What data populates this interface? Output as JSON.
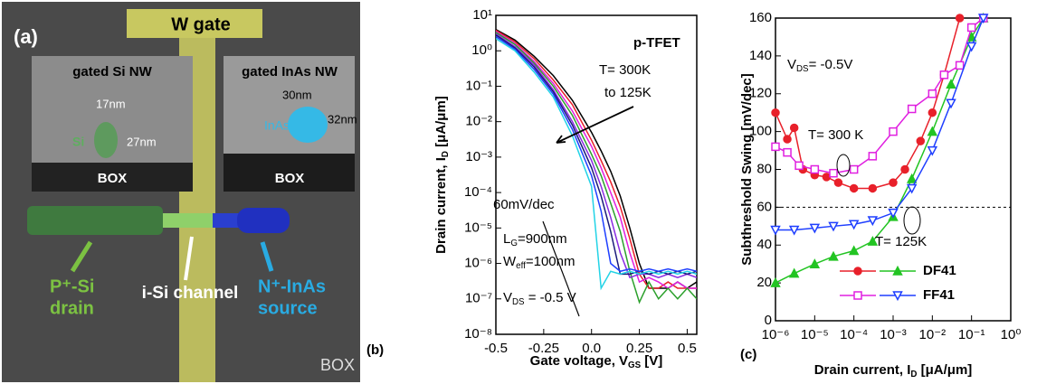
{
  "image_panel": {
    "panel_label": "(a)",
    "gate_label": "W gate",
    "left_inset": {
      "title": "gated Si NW",
      "width": "17nm",
      "height": "27nm",
      "material": "Si",
      "box": "BOX"
    },
    "right_inset": {
      "title": "gated InAs NW",
      "width": "30nm",
      "height": "32nm",
      "material": "InAs",
      "box": "BOX"
    },
    "drain": {
      "line1": "P⁺-Si",
      "line2": "drain"
    },
    "channel": "i-Si channel",
    "source": {
      "line1": "N⁺-InAs",
      "line2": "source"
    },
    "substrate": "BOX"
  },
  "chart_data": [
    {
      "type": "line",
      "panel_label": "(b)",
      "ylog": true,
      "x_label": {
        "text": "Gate voltage, V",
        "sub": "GS",
        "tail": " [V]"
      },
      "y_label": {
        "text": "Drain current, I",
        "sub": "D",
        "tail": " [μA/μm]"
      },
      "xlim": [
        -0.5,
        0.55
      ],
      "xticks": [
        -0.5,
        -0.25,
        {
          "value": 0,
          "label": "0.0"
        },
        0.25,
        0.5
      ],
      "ylim": [
        1e-08,
        10
      ],
      "yticks": [
        {
          "value": 1e-08,
          "label": "10⁻⁸"
        },
        {
          "value": 1e-07,
          "label": "10⁻⁷"
        },
        {
          "value": 1e-06,
          "label": "10⁻⁶"
        },
        {
          "value": 1e-05,
          "label": "10⁻⁵"
        },
        {
          "value": 0.0001,
          "label": "10⁻⁴"
        },
        {
          "value": 0.001,
          "label": "10⁻³"
        },
        {
          "value": 0.01,
          "label": "10⁻²"
        },
        {
          "value": 0.1,
          "label": "10⁻¹"
        },
        {
          "value": 1,
          "label": "10⁰"
        },
        {
          "value": 10,
          "label": "10¹"
        }
      ],
      "annotations": [
        {
          "text": "p-TFET"
        },
        {
          "text": "T= 300K"
        },
        {
          "text": "to 125K"
        },
        {
          "text": "60mV/dec"
        },
        {
          "text": "L",
          "sub": "G",
          "tail": "=900nm"
        },
        {
          "text": "W",
          "sub": "eff",
          "tail": "=100nm"
        },
        {
          "text": "V",
          "sub": "DS",
          "tail": " = -0.5 V"
        }
      ],
      "x": [
        -0.5,
        -0.4,
        -0.3,
        -0.2,
        -0.1,
        0,
        0.05,
        0.1,
        0.15,
        0.2,
        0.25,
        0.3,
        0.35,
        0.4,
        0.45,
        0.5,
        0.55
      ],
      "series": [
        {
          "color": "#000000",
          "values": [
            4,
            2,
            0.7,
            0.2,
            0.04,
            0.005,
            0.0015,
            0.0004,
            8e-05,
            1e-05,
            1e-06,
            2e-07,
            2e-07,
            2e-07,
            3e-07,
            2e-07,
            3e-07
          ]
        },
        {
          "color": "#e8202a",
          "values": [
            3.8,
            1.8,
            0.6,
            0.15,
            0.03,
            0.003,
            0.0008,
            0.0002,
            4e-05,
            5e-06,
            5e-07,
            2e-07,
            2e-07,
            3e-07,
            2e-07,
            2e-07,
            2e-07
          ]
        },
        {
          "color": "#e020e0",
          "values": [
            3.5,
            1.6,
            0.5,
            0.12,
            0.02,
            0.002,
            0.0005,
            0.0001,
            2e-05,
            2e-06,
            3e-07,
            4e-07,
            3e-07,
            2e-07,
            3e-07,
            2e-07,
            2e-07
          ]
        },
        {
          "color": "#2ca02c",
          "values": [
            3.3,
            1.5,
            0.45,
            0.1,
            0.015,
            0.0012,
            0.0003,
            5e-05,
            8e-06,
            6e-07,
            8e-08,
            3e-07,
            1e-07,
            2e-07,
            1e-07,
            2e-07,
            1e-07
          ]
        },
        {
          "color": "#8a2be2",
          "values": [
            3,
            1.3,
            0.4,
            0.08,
            0.01,
            0.0008,
            0.00015,
            2e-05,
            2e-06,
            4e-07,
            5e-07,
            5e-07,
            4e-07,
            5e-07,
            4e-07,
            5e-07,
            4e-07
          ]
        },
        {
          "color": "#1a1a7a",
          "values": [
            2.8,
            1.2,
            0.35,
            0.07,
            0.008,
            0.0005,
            8e-05,
            8e-06,
            5e-07,
            5e-07,
            6e-07,
            5e-07,
            6e-07,
            5e-07,
            6e-07,
            5e-07,
            6e-07
          ]
        },
        {
          "color": "#1f3fff",
          "values": [
            2.5,
            1.1,
            0.3,
            0.06,
            0.006,
            0.0003,
            3e-05,
            1e-06,
            6e-07,
            7e-07,
            6e-07,
            7e-07,
            6e-07,
            7e-07,
            6e-07,
            7e-07,
            6e-07
          ]
        },
        {
          "color": "#22d3e6",
          "values": [
            2.2,
            1,
            0.25,
            0.05,
            0.004,
            0.00015,
            2e-07,
            6e-07,
            5e-07,
            6e-07,
            5e-07,
            6e-07,
            5e-07,
            6e-07,
            5e-07,
            6e-07,
            5e-07
          ]
        }
      ]
    },
    {
      "type": "line",
      "panel_label": "(c)",
      "xlog": true,
      "x_label": {
        "text": "Drain current, I",
        "sub": "D",
        "tail": " [μA/μm]"
      },
      "y_label": {
        "text": "Subthreshold Swing [mV/dec]"
      },
      "xlim": [
        1e-06,
        1
      ],
      "xticks": [
        {
          "value": 1e-06,
          "label": "10⁻⁶"
        },
        {
          "value": 1e-05,
          "label": "10⁻⁵"
        },
        {
          "value": 0.0001,
          "label": "10⁻⁴"
        },
        {
          "value": 0.001,
          "label": "10⁻³"
        },
        {
          "value": 0.01,
          "label": "10⁻²"
        },
        {
          "value": 0.1,
          "label": "10⁻¹"
        },
        {
          "value": 1,
          "label": "10⁰"
        }
      ],
      "ylim": [
        0,
        160
      ],
      "yticks": [
        0,
        20,
        40,
        60,
        80,
        100,
        120,
        140,
        160
      ],
      "reference_line": 60,
      "annotations": [
        {
          "text": "V",
          "sub": "DS",
          "tail": "= -0.5V"
        },
        {
          "text": "T= 300 K"
        },
        {
          "text": "T= 125K"
        }
      ],
      "series": [
        {
          "name": "DF41",
          "color": "#e8202a",
          "marker": "circle",
          "marker_fill": true,
          "x": [
            1e-06,
            2e-06,
            3e-06,
            5e-06,
            1e-05,
            2e-05,
            4e-05,
            0.0001,
            0.0003,
            0.001,
            0.002,
            0.005,
            0.01,
            0.02,
            0.05
          ],
          "values": [
            110,
            96,
            102,
            80,
            77,
            76,
            73,
            70,
            70,
            73,
            80,
            95,
            110,
            130,
            160
          ]
        },
        {
          "name": "DF41",
          "color": "#22c422",
          "marker": "triangle",
          "marker_fill": true,
          "x": [
            1e-06,
            3e-06,
            1e-05,
            3e-05,
            0.0001,
            0.0003,
            0.001,
            0.003,
            0.01,
            0.03,
            0.1,
            0.2
          ],
          "values": [
            20,
            25,
            30,
            34,
            37,
            42,
            55,
            75,
            100,
            125,
            150,
            160
          ]
        },
        {
          "name": "FF41",
          "color": "#e020e0",
          "marker": "square",
          "marker_fill": false,
          "x": [
            1e-06,
            2e-06,
            4e-06,
            1e-05,
            3e-05,
            0.0001,
            0.0003,
            0.001,
            0.003,
            0.01,
            0.02,
            0.05,
            0.1,
            0.2
          ],
          "values": [
            92,
            89,
            82,
            80,
            78,
            80,
            87,
            100,
            112,
            120,
            130,
            135,
            155,
            160
          ]
        },
        {
          "name": "FF41",
          "color": "#1f3fff",
          "marker": "triangle-down",
          "marker_fill": false,
          "x": [
            1e-06,
            3e-06,
            1e-05,
            3e-05,
            0.0001,
            0.0003,
            0.001,
            0.003,
            0.01,
            0.03,
            0.1,
            0.2
          ],
          "values": [
            48,
            48,
            49,
            50,
            51,
            53,
            57,
            70,
            90,
            115,
            145,
            160
          ]
        }
      ]
    }
  ]
}
